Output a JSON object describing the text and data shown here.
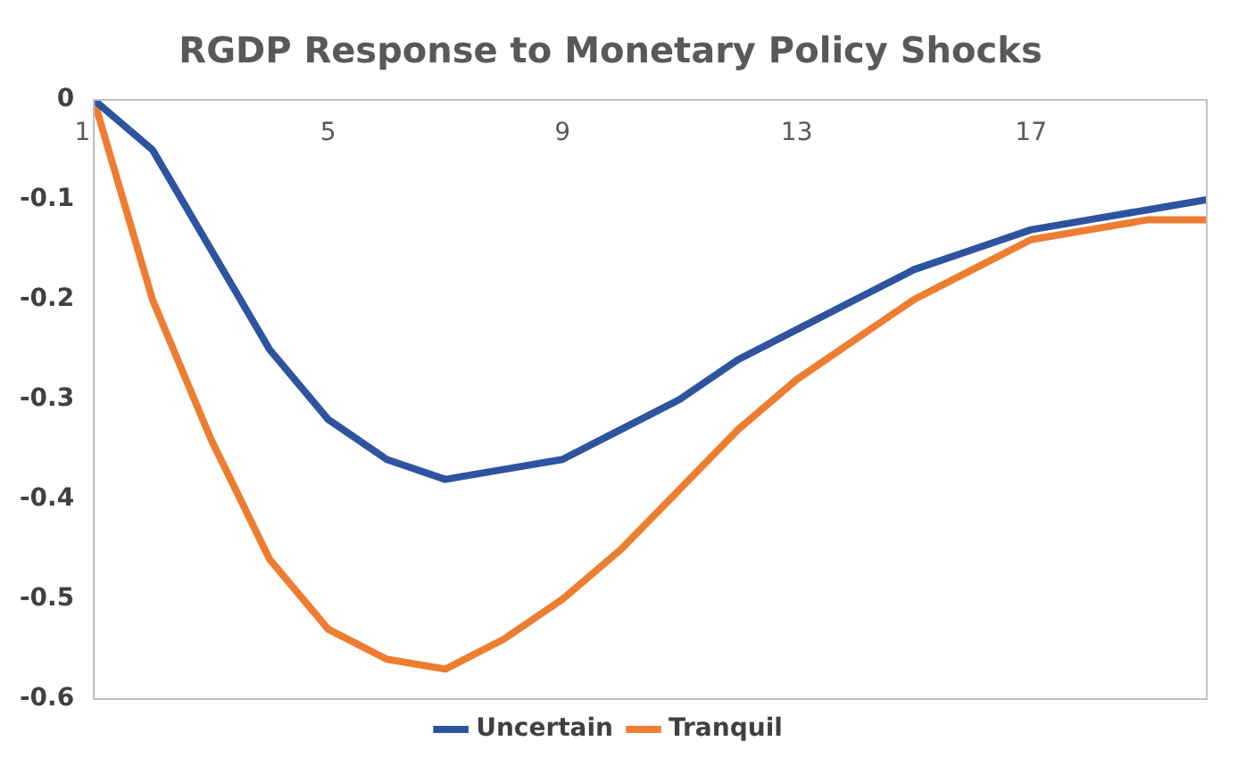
{
  "chart_data": {
    "type": "line",
    "title": "RGDP Response to Monetary Policy Shocks",
    "x": [
      1,
      2,
      3,
      4,
      5,
      6,
      7,
      8,
      9,
      10,
      11,
      12,
      13,
      14,
      15,
      16,
      17,
      18,
      19,
      20
    ],
    "series": [
      {
        "name": "Uncertain",
        "color": "#2e54a0",
        "values": [
          0,
          -0.05,
          -0.15,
          -0.25,
          -0.32,
          -0.36,
          -0.38,
          -0.37,
          -0.36,
          -0.33,
          -0.3,
          -0.26,
          -0.23,
          -0.2,
          -0.17,
          -0.15,
          -0.13,
          -0.12,
          -0.11,
          -0.1
        ]
      },
      {
        "name": "Tranquil",
        "color": "#ed7d31",
        "values": [
          0,
          -0.2,
          -0.34,
          -0.46,
          -0.53,
          -0.56,
          -0.57,
          -0.54,
          -0.5,
          -0.45,
          -0.39,
          -0.33,
          -0.28,
          -0.24,
          -0.2,
          -0.17,
          -0.14,
          -0.13,
          -0.12,
          -0.12
        ]
      }
    ],
    "xlim": [
      1,
      20
    ],
    "xticks": [
      1,
      5,
      9,
      13,
      17
    ],
    "ylim": [
      -0.6,
      0
    ],
    "yticks": [
      0,
      -0.1,
      -0.2,
      -0.3,
      -0.4,
      -0.5,
      -0.6
    ],
    "grid": false,
    "legend": "bottom",
    "marker": "none",
    "line_style": "solid"
  }
}
